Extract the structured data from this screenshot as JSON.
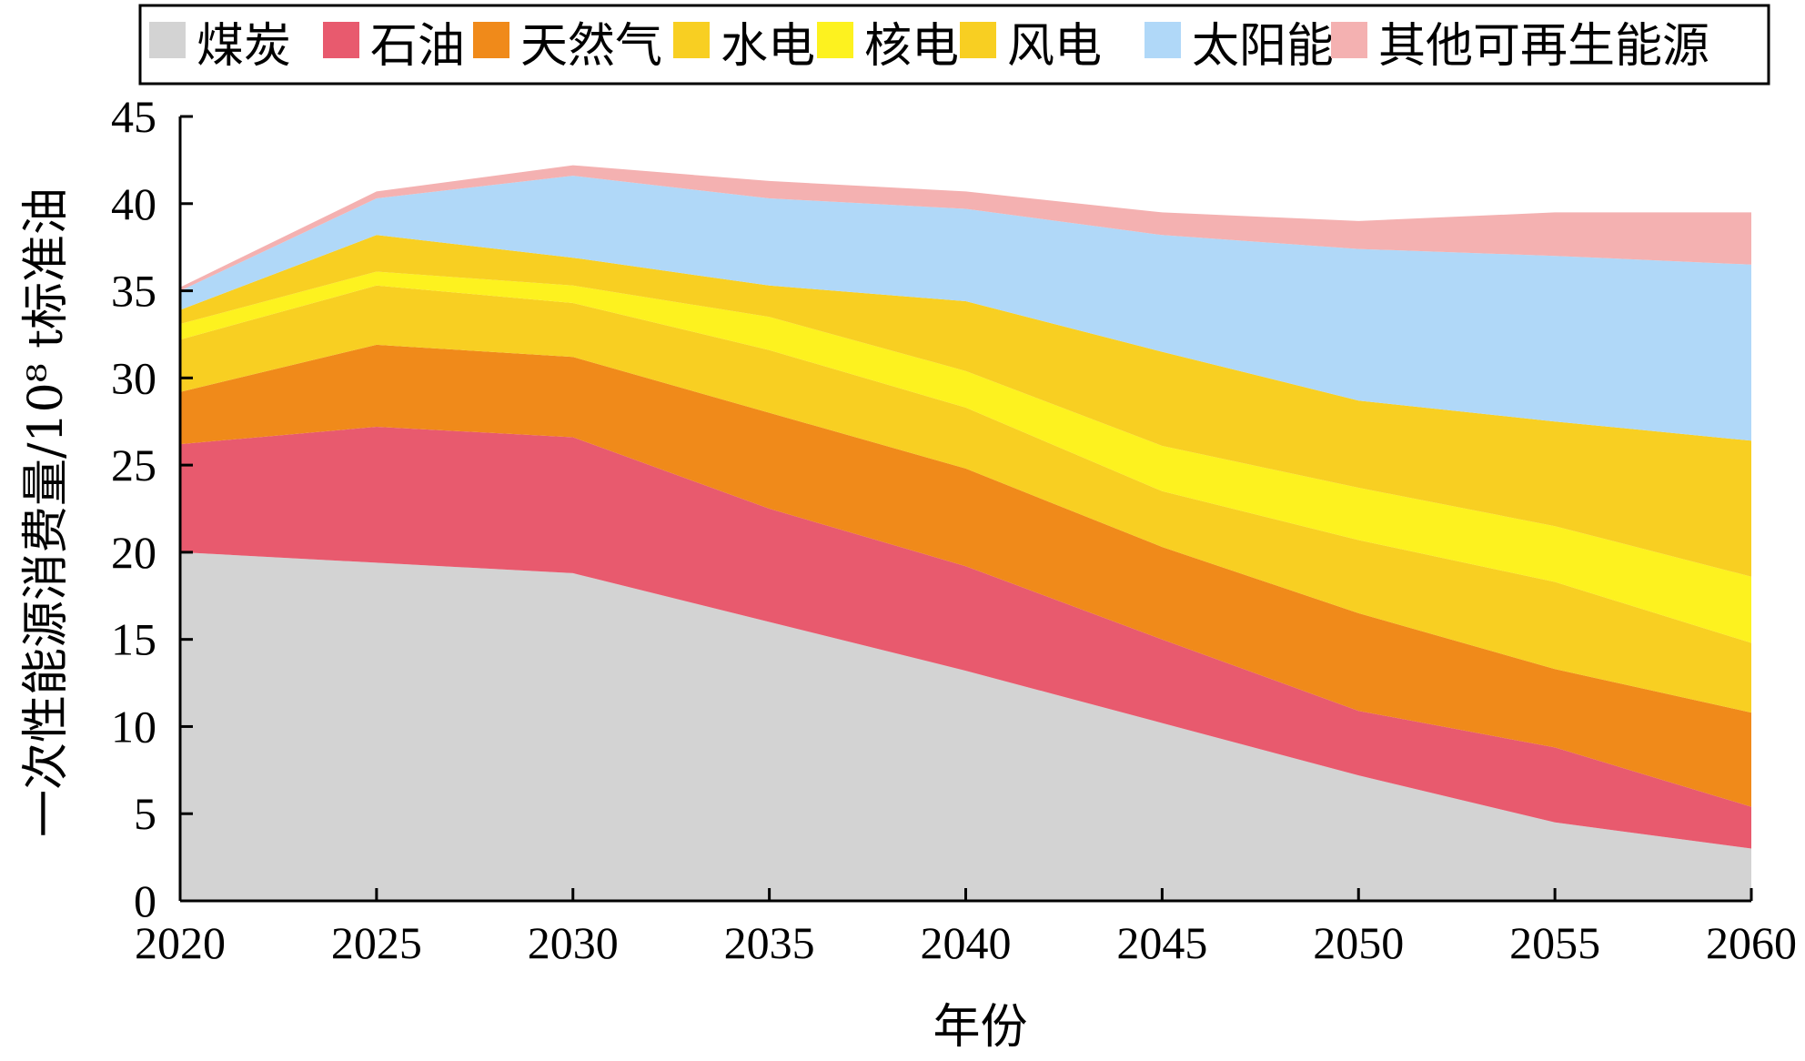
{
  "chart_data": {
    "type": "area",
    "stacked": true,
    "x": [
      2020,
      2025,
      2030,
      2035,
      2040,
      2045,
      2050,
      2055,
      2060
    ],
    "xlabel": "年份",
    "ylabel": "一次性能源消费量/10⁸ t标准油",
    "xlim": [
      2020,
      2060
    ],
    "ylim": [
      0,
      45
    ],
    "yticks": [
      0,
      5,
      10,
      15,
      20,
      25,
      30,
      35,
      40,
      45
    ],
    "xticks": [
      2020,
      2025,
      2030,
      2035,
      2040,
      2045,
      2050,
      2055,
      2060
    ],
    "grid": false,
    "legend_position": "top",
    "series": [
      {
        "name": "煤炭",
        "color": "#d3d3d3",
        "values": [
          20.0,
          19.4,
          18.8,
          16.0,
          13.2,
          10.2,
          7.2,
          4.5,
          3.0
        ]
      },
      {
        "name": "石油",
        "color": "#e85a6e",
        "values": [
          6.2,
          7.8,
          7.8,
          6.5,
          6.0,
          4.8,
          3.7,
          4.3,
          2.4
        ]
      },
      {
        "name": "天然气",
        "color": "#f08a1a",
        "values": [
          3.0,
          4.7,
          4.6,
          5.5,
          5.6,
          5.3,
          5.6,
          4.5,
          5.4
        ]
      },
      {
        "name": "水电",
        "color": "#f8cf22",
        "values": [
          3.0,
          3.4,
          3.1,
          3.6,
          3.5,
          3.2,
          4.2,
          5.0,
          4.0
        ]
      },
      {
        "name": "核电",
        "color": "#fdf21f",
        "values": [
          0.9,
          0.8,
          1.0,
          1.9,
          2.1,
          2.6,
          3.0,
          3.2,
          3.8
        ]
      },
      {
        "name": "风电",
        "color": "#f8cf22",
        "values": [
          0.8,
          2.1,
          1.6,
          1.8,
          4.0,
          5.4,
          5.0,
          6.0,
          7.8
        ]
      },
      {
        "name": "太阳能",
        "color": "#b0d8f8",
        "values": [
          1.1,
          2.1,
          4.7,
          5.0,
          5.3,
          6.7,
          8.7,
          9.5,
          10.1
        ]
      },
      {
        "name": "其他可再生能源",
        "color": "#f4b1b1",
        "values": [
          0.2,
          0.4,
          0.6,
          1.0,
          1.0,
          1.3,
          1.6,
          2.5,
          3.0
        ]
      }
    ]
  }
}
